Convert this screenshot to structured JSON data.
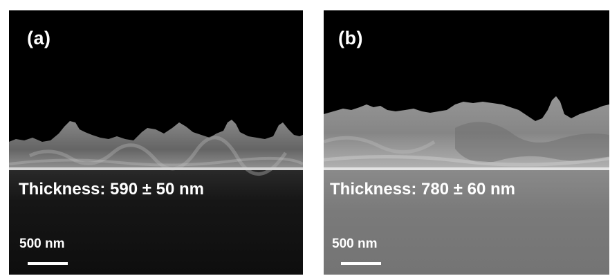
{
  "panels": [
    {
      "letter": "(a)",
      "thickness": "Thickness: 590 ± 50 nm",
      "scale": "500 nm",
      "substrate_color": "#141414"
    },
    {
      "letter": "(b)",
      "thickness": "Thickness: 780 ± 60 nm",
      "scale": "500 nm",
      "substrate_color": "#7c7c7c"
    }
  ]
}
